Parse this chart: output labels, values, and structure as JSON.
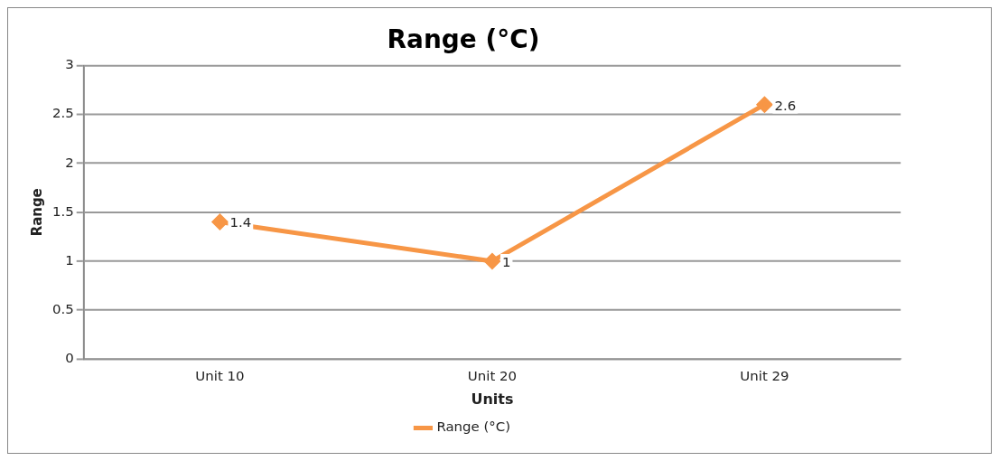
{
  "chart_data": {
    "type": "line",
    "title": "Range (°C)",
    "xlabel": "Units",
    "ylabel": "Range",
    "categories": [
      "Unit 10",
      "Unit 20",
      "Unit 29"
    ],
    "series": [
      {
        "name": "Range (°C)",
        "color": "#f79646",
        "values": [
          1.4,
          1,
          2.6
        ]
      }
    ],
    "ylim": [
      0,
      3
    ],
    "yticks": [
      0,
      0.5,
      1,
      1.5,
      2,
      2.5,
      3
    ],
    "grid": "y",
    "legend": "bottom",
    "marker": "diamond",
    "data_labels": true
  }
}
